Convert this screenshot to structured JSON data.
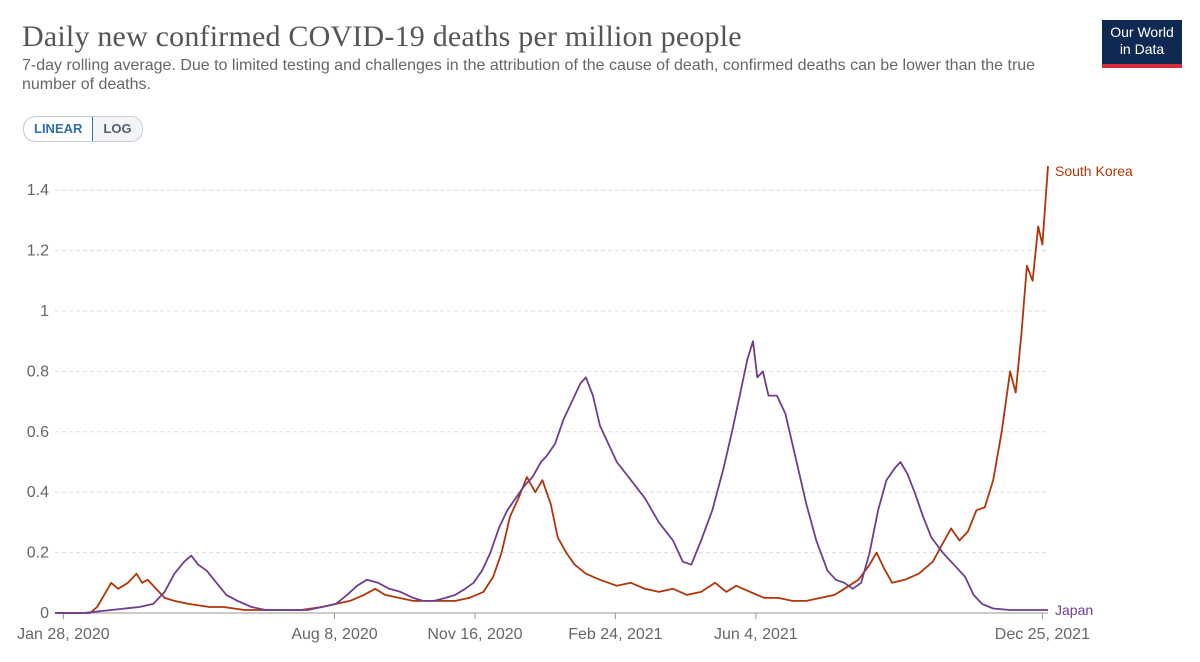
{
  "header": {
    "title": "Daily new confirmed COVID-19 deaths per million people",
    "subtitle": "7-day rolling average. Due to limited testing and challenges in the attribution of the cause of death, confirmed deaths can be lower than the true number of deaths.",
    "logo_line1": "Our World",
    "logo_line2": "in Data"
  },
  "controls": {
    "linear_label": "LINEAR",
    "log_label": "LOG",
    "selected": "LINEAR"
  },
  "colors": {
    "south_korea": "#b13507",
    "japan": "#6d3e91",
    "grid": "#dddddd",
    "axis_text": "#666666"
  },
  "chart_data": {
    "type": "line",
    "title": "Daily new confirmed COVID-19 deaths per million people",
    "x_start": "Jan 22, 2020",
    "x_end": "Dec 29, 2021",
    "x_ticks": [
      {
        "day": 6,
        "label": "Jan 28, 2020"
      },
      {
        "day": 199,
        "label": "Aug 8, 2020"
      },
      {
        "day": 299,
        "label": "Nov 16, 2020"
      },
      {
        "day": 399,
        "label": "Feb 24, 2021"
      },
      {
        "day": 499,
        "label": "Jun 4, 2021"
      },
      {
        "day": 703,
        "label": "Dec 25, 2021"
      }
    ],
    "ylim": [
      0,
      1.5
    ],
    "y_ticks": [
      {
        "v": 0,
        "label": "0"
      },
      {
        "v": 0.2,
        "label": "0.2"
      },
      {
        "v": 0.4,
        "label": "0.4"
      },
      {
        "v": 0.6,
        "label": "0.6"
      },
      {
        "v": 0.8,
        "label": "0.8"
      },
      {
        "v": 1,
        "label": "1"
      },
      {
        "v": 1.2,
        "label": "1.2"
      },
      {
        "v": 1.4,
        "label": "1.4"
      }
    ],
    "x_max_day": 707,
    "series": [
      {
        "name": "South Korea",
        "color": "#b13507",
        "points": [
          [
            0,
            0
          ],
          [
            25,
            0
          ],
          [
            30,
            0.02
          ],
          [
            35,
            0.06
          ],
          [
            40,
            0.1
          ],
          [
            45,
            0.08
          ],
          [
            52,
            0.1
          ],
          [
            58,
            0.13
          ],
          [
            62,
            0.1
          ],
          [
            66,
            0.11
          ],
          [
            72,
            0.08
          ],
          [
            78,
            0.05
          ],
          [
            85,
            0.04
          ],
          [
            95,
            0.03
          ],
          [
            110,
            0.02
          ],
          [
            120,
            0.02
          ],
          [
            135,
            0.01
          ],
          [
            150,
            0.01
          ],
          [
            160,
            0.01
          ],
          [
            175,
            0.01
          ],
          [
            190,
            0.02
          ],
          [
            200,
            0.03
          ],
          [
            210,
            0.04
          ],
          [
            220,
            0.06
          ],
          [
            228,
            0.08
          ],
          [
            235,
            0.06
          ],
          [
            245,
            0.05
          ],
          [
            255,
            0.04
          ],
          [
            265,
            0.04
          ],
          [
            275,
            0.04
          ],
          [
            285,
            0.04
          ],
          [
            295,
            0.05
          ],
          [
            305,
            0.07
          ],
          [
            312,
            0.12
          ],
          [
            318,
            0.2
          ],
          [
            324,
            0.32
          ],
          [
            330,
            0.38
          ],
          [
            336,
            0.45
          ],
          [
            342,
            0.4
          ],
          [
            347,
            0.44
          ],
          [
            353,
            0.36
          ],
          [
            358,
            0.25
          ],
          [
            364,
            0.2
          ],
          [
            370,
            0.16
          ],
          [
            378,
            0.13
          ],
          [
            388,
            0.11
          ],
          [
            400,
            0.09
          ],
          [
            410,
            0.1
          ],
          [
            420,
            0.08
          ],
          [
            430,
            0.07
          ],
          [
            440,
            0.08
          ],
          [
            450,
            0.06
          ],
          [
            460,
            0.07
          ],
          [
            470,
            0.1
          ],
          [
            478,
            0.07
          ],
          [
            485,
            0.09
          ],
          [
            495,
            0.07
          ],
          [
            505,
            0.05
          ],
          [
            515,
            0.05
          ],
          [
            525,
            0.04
          ],
          [
            535,
            0.04
          ],
          [
            545,
            0.05
          ],
          [
            555,
            0.06
          ],
          [
            562,
            0.08
          ],
          [
            572,
            0.11
          ],
          [
            580,
            0.16
          ],
          [
            585,
            0.2
          ],
          [
            590,
            0.15
          ],
          [
            596,
            0.1
          ],
          [
            605,
            0.11
          ],
          [
            615,
            0.13
          ],
          [
            625,
            0.17
          ],
          [
            632,
            0.23
          ],
          [
            638,
            0.28
          ],
          [
            644,
            0.24
          ],
          [
            650,
            0.27
          ],
          [
            656,
            0.34
          ],
          [
            662,
            0.35
          ],
          [
            668,
            0.44
          ],
          [
            674,
            0.6
          ],
          [
            680,
            0.8
          ],
          [
            684,
            0.73
          ],
          [
            688,
            0.92
          ],
          [
            692,
            1.15
          ],
          [
            696,
            1.1
          ],
          [
            700,
            1.28
          ],
          [
            703,
            1.22
          ],
          [
            705,
            1.35
          ],
          [
            707,
            1.48
          ]
        ]
      },
      {
        "name": "Japan",
        "color": "#6d3e91",
        "points": [
          [
            0,
            0
          ],
          [
            20,
            0
          ],
          [
            30,
            0.005
          ],
          [
            40,
            0.01
          ],
          [
            50,
            0.015
          ],
          [
            60,
            0.02
          ],
          [
            70,
            0.03
          ],
          [
            78,
            0.07
          ],
          [
            85,
            0.13
          ],
          [
            92,
            0.17
          ],
          [
            97,
            0.19
          ],
          [
            102,
            0.16
          ],
          [
            108,
            0.14
          ],
          [
            115,
            0.1
          ],
          [
            122,
            0.06
          ],
          [
            130,
            0.04
          ],
          [
            140,
            0.02
          ],
          [
            150,
            0.01
          ],
          [
            160,
            0.01
          ],
          [
            170,
            0.01
          ],
          [
            180,
            0.01
          ],
          [
            190,
            0.02
          ],
          [
            200,
            0.03
          ],
          [
            208,
            0.06
          ],
          [
            215,
            0.09
          ],
          [
            222,
            0.11
          ],
          [
            230,
            0.1
          ],
          [
            238,
            0.08
          ],
          [
            246,
            0.07
          ],
          [
            255,
            0.05
          ],
          [
            262,
            0.04
          ],
          [
            270,
            0.04
          ],
          [
            278,
            0.05
          ],
          [
            285,
            0.06
          ],
          [
            292,
            0.08
          ],
          [
            298,
            0.1
          ],
          [
            304,
            0.14
          ],
          [
            310,
            0.2
          ],
          [
            316,
            0.28
          ],
          [
            322,
            0.34
          ],
          [
            328,
            0.38
          ],
          [
            334,
            0.42
          ],
          [
            340,
            0.45
          ],
          [
            346,
            0.5
          ],
          [
            350,
            0.52
          ],
          [
            356,
            0.56
          ],
          [
            362,
            0.64
          ],
          [
            368,
            0.7
          ],
          [
            374,
            0.76
          ],
          [
            378,
            0.78
          ],
          [
            383,
            0.72
          ],
          [
            388,
            0.62
          ],
          [
            394,
            0.56
          ],
          [
            400,
            0.5
          ],
          [
            410,
            0.44
          ],
          [
            420,
            0.38
          ],
          [
            430,
            0.3
          ],
          [
            440,
            0.24
          ],
          [
            447,
            0.17
          ],
          [
            453,
            0.16
          ],
          [
            460,
            0.24
          ],
          [
            468,
            0.34
          ],
          [
            476,
            0.48
          ],
          [
            482,
            0.6
          ],
          [
            488,
            0.73
          ],
          [
            493,
            0.84
          ],
          [
            497,
            0.9
          ],
          [
            500,
            0.78
          ],
          [
            504,
            0.8
          ],
          [
            508,
            0.72
          ],
          [
            514,
            0.72
          ],
          [
            520,
            0.66
          ],
          [
            528,
            0.5
          ],
          [
            535,
            0.36
          ],
          [
            542,
            0.24
          ],
          [
            550,
            0.14
          ],
          [
            556,
            0.11
          ],
          [
            562,
            0.1
          ],
          [
            568,
            0.08
          ],
          [
            574,
            0.1
          ],
          [
            580,
            0.2
          ],
          [
            586,
            0.34
          ],
          [
            592,
            0.44
          ],
          [
            598,
            0.48
          ],
          [
            602,
            0.5
          ],
          [
            607,
            0.46
          ],
          [
            612,
            0.4
          ],
          [
            618,
            0.32
          ],
          [
            624,
            0.25
          ],
          [
            632,
            0.2
          ],
          [
            640,
            0.16
          ],
          [
            648,
            0.12
          ],
          [
            654,
            0.06
          ],
          [
            660,
            0.03
          ],
          [
            668,
            0.015
          ],
          [
            680,
            0.01
          ],
          [
            695,
            0.01
          ],
          [
            707,
            0.01
          ]
        ]
      }
    ]
  }
}
